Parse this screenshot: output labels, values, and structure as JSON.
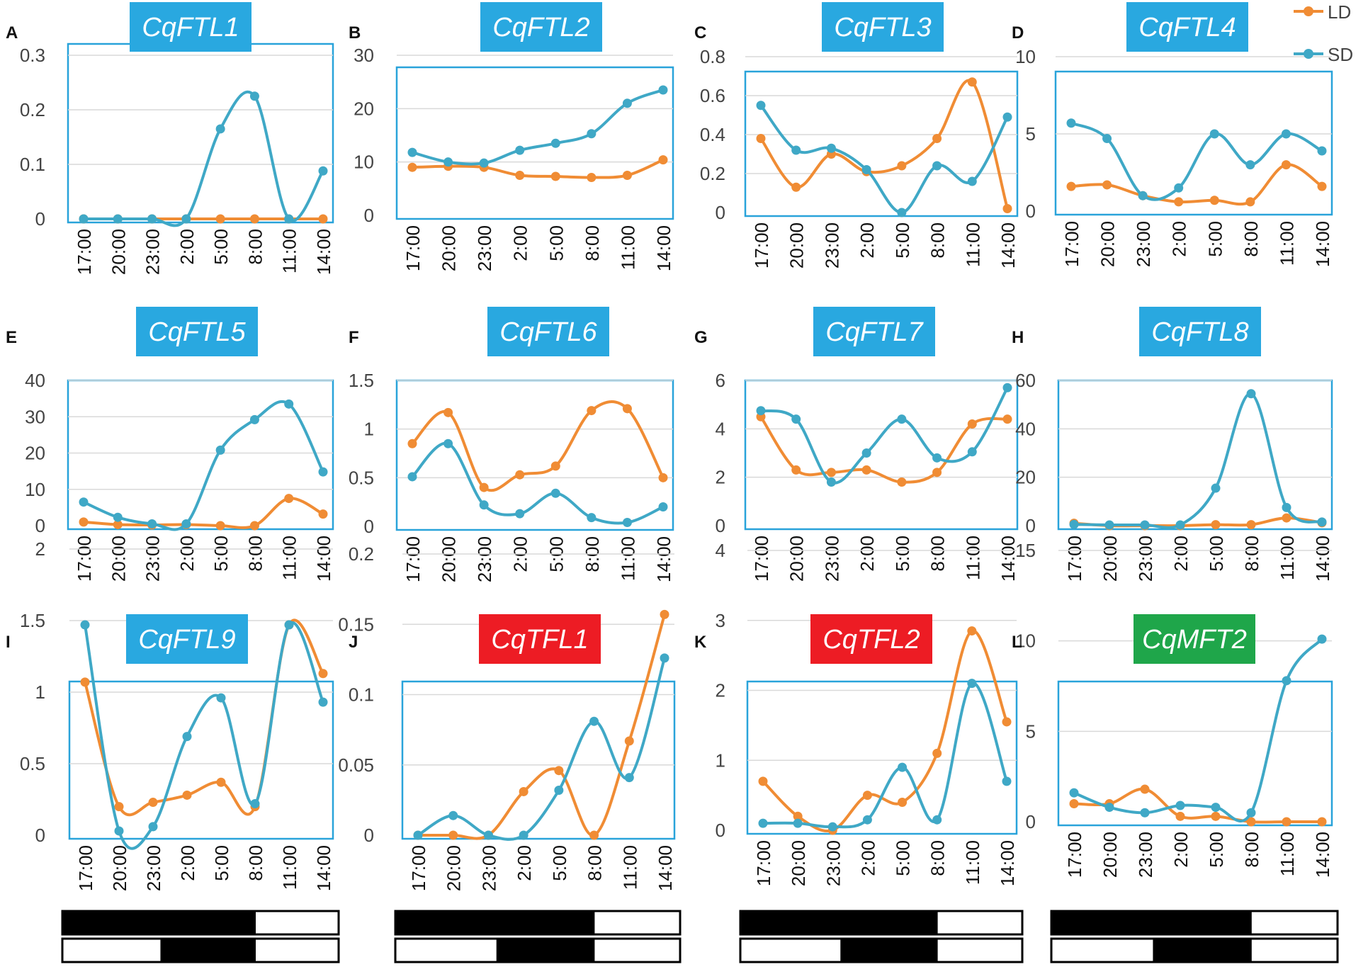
{
  "colors": {
    "LD": "#F08C34",
    "SD": "#3FA8C6",
    "frame": "#29A3DA",
    "grid": "#D9D9D9",
    "title_FT": "#29A8E0",
    "title_TFL": "#ED1C24",
    "title_MFT": "#1FA64A"
  },
  "legend": {
    "LD": "LD",
    "SD": "SD"
  },
  "chart_data": [
    {
      "letter": "A",
      "title": "CqFTL1",
      "title_kind": "FT",
      "type": "line",
      "categories": [
        "17:00",
        "20:00",
        "23:00",
        "2:00",
        "5:00",
        "8:00",
        "11:00",
        "14:00"
      ],
      "yticks": [
        "0",
        "0.1",
        "0.2",
        "0.3"
      ],
      "ylim": [
        0,
        0.3
      ],
      "series": [
        {
          "name": "LD",
          "values": [
            0,
            0,
            0,
            0,
            0,
            0,
            0,
            0
          ]
        },
        {
          "name": "SD",
          "values": [
            0,
            0,
            0,
            0,
            0.165,
            0.225,
            0,
            0.088
          ]
        }
      ],
      "light_bars": false
    },
    {
      "letter": "B",
      "title": "CqFTL2",
      "title_kind": "FT",
      "type": "line",
      "categories": [
        "17:00",
        "20:00",
        "23:00",
        "2:00",
        "5:00",
        "8:00",
        "11:00",
        "14:00"
      ],
      "yticks": [
        "0",
        "10",
        "20",
        "30"
      ],
      "ylim": [
        0,
        30
      ],
      "series": [
        {
          "name": "LD",
          "values": [
            9,
            9.2,
            9,
            7.5,
            7.3,
            7.1,
            7.5,
            10.4
          ]
        },
        {
          "name": "SD",
          "values": [
            11.8,
            10,
            9.8,
            12.2,
            13.5,
            15.3,
            21,
            23.5
          ]
        }
      ],
      "light_bars": false
    },
    {
      "letter": "C",
      "title": "CqFTL3",
      "title_kind": "FT",
      "type": "line",
      "categories": [
        "17:00",
        "20:00",
        "23:00",
        "2:00",
        "5:00",
        "8:00",
        "11:00",
        "14:00"
      ],
      "yticks": [
        "0",
        "0.2",
        "0.4",
        "0.6",
        "0.8"
      ],
      "ylim": [
        0,
        0.8
      ],
      "series": [
        {
          "name": "LD",
          "values": [
            0.38,
            0.13,
            0.3,
            0.21,
            0.24,
            0.38,
            0.67,
            0.02
          ]
        },
        {
          "name": "SD",
          "values": [
            0.55,
            0.32,
            0.33,
            0.22,
            0,
            0.24,
            0.16,
            0.49
          ]
        }
      ],
      "light_bars": false
    },
    {
      "letter": "D",
      "title": "CqFTL4",
      "title_kind": "FT",
      "type": "line",
      "categories": [
        "17:00",
        "20:00",
        "23:00",
        "2:00",
        "5:00",
        "8:00",
        "11:00",
        "14:00"
      ],
      "yticks": [
        "0",
        "5",
        "10"
      ],
      "ylim": [
        0,
        10
      ],
      "series": [
        {
          "name": "LD",
          "values": [
            1.6,
            1.7,
            1,
            0.6,
            0.7,
            0.6,
            3,
            1.6
          ]
        },
        {
          "name": "SD",
          "values": [
            5.7,
            4.7,
            1,
            1.5,
            5,
            3,
            5,
            3.9
          ]
        }
      ],
      "light_bars": false
    },
    {
      "letter": "E",
      "title": "CqFTL5",
      "title_kind": "FT",
      "type": "line",
      "categories": [
        "17:00",
        "20:00",
        "23:00",
        "2:00",
        "5:00",
        "8:00",
        "11:00",
        "14:00"
      ],
      "yticks": [
        "0",
        "10",
        "20",
        "30",
        "40"
      ],
      "ylim": [
        0,
        40
      ],
      "series": [
        {
          "name": "LD",
          "values": [
            1,
            0.3,
            0.2,
            0.3,
            0,
            0,
            7.5,
            3.2
          ]
        },
        {
          "name": "SD",
          "values": [
            6.5,
            2.3,
            0.5,
            0.5,
            20.8,
            29.2,
            33.5,
            14.8
          ]
        }
      ],
      "light_bars": false
    },
    {
      "letter": "F",
      "title": "CqFTL6",
      "title_kind": "FT",
      "type": "line",
      "categories": [
        "17:00",
        "20:00",
        "23:00",
        "2:00",
        "5:00",
        "8:00",
        "11:00",
        "14:00"
      ],
      "yticks": [
        "0",
        "0.5",
        "1",
        "1.5"
      ],
      "ylim": [
        0,
        1.5
      ],
      "series": [
        {
          "name": "LD",
          "values": [
            0.85,
            1.17,
            0.4,
            0.53,
            0.62,
            1.19,
            1.21,
            0.5
          ]
        },
        {
          "name": "SD",
          "values": [
            0.51,
            0.85,
            0.22,
            0.13,
            0.34,
            0.09,
            0.04,
            0.2
          ]
        }
      ],
      "light_bars": false
    },
    {
      "letter": "G",
      "title": "CqFTL7",
      "title_kind": "FT",
      "type": "line",
      "categories": [
        "17:00",
        "20:00",
        "23:00",
        "2:00",
        "5:00",
        "8:00",
        "11:00",
        "14:00"
      ],
      "yticks": [
        "0",
        "2",
        "4",
        "6"
      ],
      "ylim": [
        0,
        6
      ],
      "series": [
        {
          "name": "LD",
          "values": [
            4.5,
            2.3,
            2.2,
            2.3,
            1.8,
            2.2,
            4.2,
            4.4
          ]
        },
        {
          "name": "SD",
          "values": [
            4.75,
            4.4,
            1.8,
            3,
            4.4,
            2.8,
            3.05,
            5.7
          ]
        }
      ],
      "light_bars": false
    },
    {
      "letter": "H",
      "title": "CqFTL8",
      "title_kind": "FT",
      "type": "line",
      "categories": [
        "17:00",
        "20:00",
        "23:00",
        "2:00",
        "5:00",
        "8:00",
        "11:00",
        "14:00"
      ],
      "yticks": [
        "0",
        "20",
        "40",
        "60"
      ],
      "ylim": [
        0,
        60
      ],
      "series": [
        {
          "name": "LD",
          "values": [
            1,
            0,
            0,
            0,
            0.4,
            0.4,
            3.2,
            1.2
          ]
        },
        {
          "name": "SD",
          "values": [
            0.5,
            0.3,
            0.3,
            0.3,
            15.5,
            54.5,
            7.5,
            1.5
          ]
        }
      ],
      "light_bars": false
    },
    {
      "letter": "I",
      "title": "CqFTL9",
      "title_kind": "FT",
      "type": "line",
      "categories": [
        "17:00",
        "20:00",
        "23:00",
        "2:00",
        "5:00",
        "8:00",
        "11:00",
        "14:00"
      ],
      "yticks": [
        "0",
        "0.5",
        "1",
        "1.5",
        "2"
      ],
      "ylim": [
        0,
        2
      ],
      "series": [
        {
          "name": "LD",
          "values": [
            1.07,
            0.2,
            0.23,
            0.28,
            0.37,
            0.2,
            1.47,
            1.13
          ]
        },
        {
          "name": "SD",
          "values": [
            1.47,
            0.03,
            0.06,
            0.69,
            0.96,
            0.22,
            1.47,
            0.93
          ]
        }
      ],
      "light_bars": true
    },
    {
      "letter": "J",
      "title": "CqTFL1",
      "title_kind": "TFL",
      "type": "line",
      "categories": [
        "17:00",
        "20:00",
        "23:00",
        "2:00",
        "5:00",
        "8:00",
        "11:00",
        "14:00"
      ],
      "yticks": [
        "0",
        "0.05",
        "0.1",
        "0.15",
        "0.2"
      ],
      "ylim": [
        0,
        0.2
      ],
      "series": [
        {
          "name": "LD",
          "values": [
            0,
            0,
            0,
            0.031,
            0.046,
            0,
            0.067,
            0.157
          ]
        },
        {
          "name": "SD",
          "values": [
            0,
            0.014,
            0,
            0,
            0.032,
            0.081,
            0.041,
            0.126
          ]
        }
      ],
      "light_bars": true
    },
    {
      "letter": "K",
      "title": "CqTFL2",
      "title_kind": "TFL",
      "type": "line",
      "categories": [
        "17:00",
        "20:00",
        "23:00",
        "2:00",
        "5:00",
        "8:00",
        "11:00",
        "14:00"
      ],
      "yticks": [
        "0",
        "1",
        "2",
        "3",
        "4"
      ],
      "ylim": [
        0,
        4
      ],
      "series": [
        {
          "name": "LD",
          "values": [
            0.7,
            0.2,
            0,
            0.5,
            0.4,
            1.1,
            2.85,
            1.55
          ]
        },
        {
          "name": "SD",
          "values": [
            0.1,
            0.1,
            0.05,
            0.15,
            0.9,
            0.15,
            2.1,
            0.7
          ]
        }
      ],
      "light_bars": true
    },
    {
      "letter": "L",
      "title": "CqMFT2",
      "title_kind": "MFT",
      "type": "line",
      "categories": [
        "17:00",
        "20:00",
        "23:00",
        "2:00",
        "5:00",
        "8:00",
        "11:00",
        "14:00"
      ],
      "yticks": [
        "0",
        "5",
        "10",
        "15"
      ],
      "ylim": [
        0,
        15
      ],
      "series": [
        {
          "name": "LD",
          "values": [
            1,
            1,
            1.8,
            0.3,
            0.3,
            0,
            0,
            0
          ]
        },
        {
          "name": "SD",
          "values": [
            1.6,
            0.8,
            0.5,
            0.9,
            0.8,
            0.5,
            7.8,
            10.1
          ]
        }
      ],
      "light_bars": true
    }
  ]
}
